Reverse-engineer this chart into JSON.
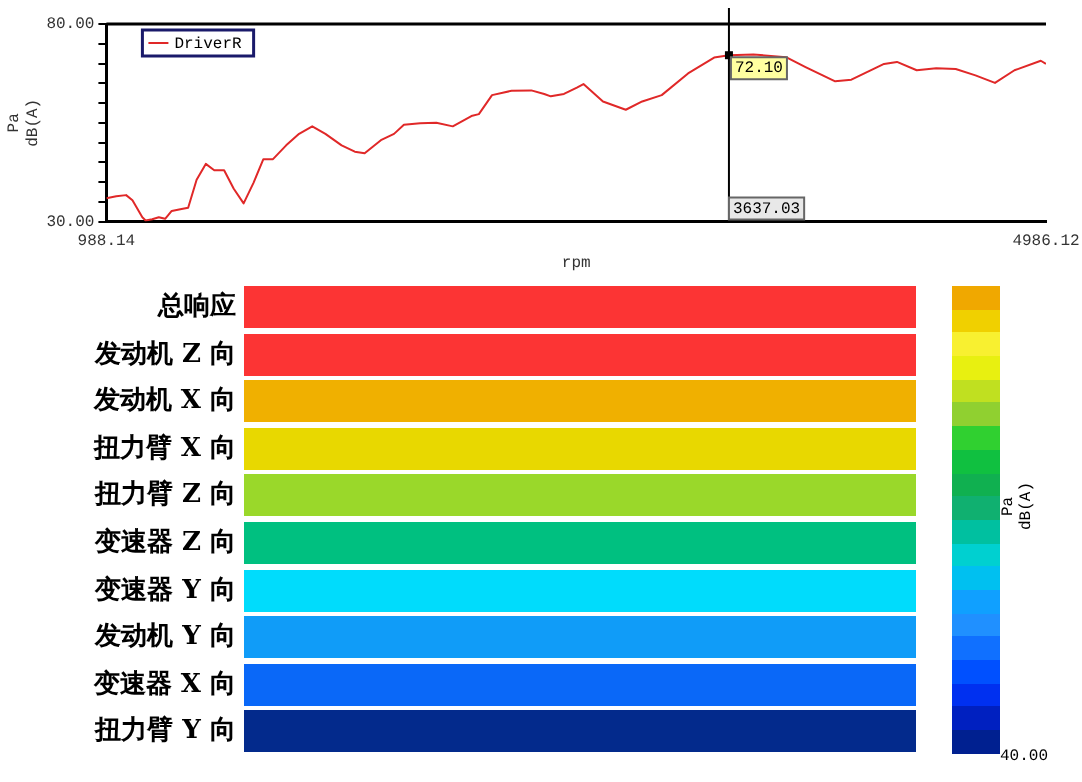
{
  "chart_data": [
    {
      "type": "line",
      "xlabel": "rpm",
      "ylabel": "Pa\ndB(A)",
      "legend": "top left",
      "marker": "none",
      "line_style": "solid",
      "xlim": [
        988.14,
        4986.12
      ],
      "xticks": [
        {
          "value": 988.14,
          "label": "988.14"
        },
        {
          "value": 4986.12,
          "label": "4986.12"
        }
      ],
      "ylim": [
        30,
        80
      ],
      "yticks": [
        {
          "value": 30,
          "label": "30.00"
        },
        {
          "value": 35,
          "label": null
        },
        {
          "value": 40,
          "label": null
        },
        {
          "value": 45,
          "label": null
        },
        {
          "value": 50,
          "label": null
        },
        {
          "value": 55,
          "label": null
        },
        {
          "value": 60,
          "label": null
        },
        {
          "value": 65,
          "label": null
        },
        {
          "value": 70,
          "label": null
        },
        {
          "value": 75,
          "label": null
        },
        {
          "value": 80,
          "label": "80.00"
        }
      ],
      "ref_lines": [
        {
          "axis": "x",
          "value": 3637.03,
          "label": "3637.03",
          "color": "#000000"
        }
      ],
      "annotations": [
        {
          "text": "72.10",
          "x": 3637.03,
          "y": 72.1
        }
      ],
      "series": [
        {
          "name": "DriverR",
          "color": "#e02828",
          "x": [
            988.14,
            1030,
            1072,
            1099,
            1141,
            1155,
            1183,
            1211,
            1238,
            1266,
            1308,
            1336,
            1372,
            1411,
            1447,
            1489,
            1530,
            1572,
            1614,
            1656,
            1697,
            1753,
            1808,
            1864,
            1920,
            1989,
            2045,
            2087,
            2156,
            2212,
            2254,
            2323,
            2392,
            2462,
            2545,
            2573,
            2629,
            2712,
            2796,
            2851,
            2879,
            2935,
            2990,
            3018,
            3101,
            3198,
            3268,
            3351,
            3463,
            3574,
            3637.03,
            3741,
            3880,
            3963,
            4089,
            4158,
            4297,
            4352,
            4436,
            4519,
            4602,
            4686,
            4769,
            4852,
            4964,
            4986
          ],
          "values": [
            35.9,
            36.4,
            36.7,
            35.4,
            31.1,
            30.3,
            30.6,
            31.1,
            30.7,
            32.7,
            33.2,
            33.5,
            40.6,
            44.6,
            43.0,
            43.0,
            38.3,
            34.6,
            39.8,
            45.8,
            45.8,
            49.3,
            52.2,
            54.1,
            52.2,
            49.3,
            47.7,
            47.3,
            50.6,
            52.2,
            54.5,
            54.9,
            55.0,
            54.1,
            56.8,
            57.2,
            62.0,
            63.1,
            63.2,
            62.3,
            61.7,
            62.3,
            63.9,
            64.8,
            60.4,
            58.3,
            60.4,
            62.0,
            67.5,
            71.5,
            72.1,
            72.3,
            71.6,
            69.1,
            65.5,
            65.9,
            69.9,
            70.4,
            68.3,
            68.8,
            68.6,
            67.0,
            65.1,
            68.3,
            70.7,
            69.9
          ]
        }
      ]
    },
    {
      "type": "other",
      "clabel": "Pa\ndB(A)",
      "annotations": [
        "40.00"
      ],
      "categories": [
        "总响应",
        "发动机 Z 向",
        "发动机 X 向",
        "扭力臂 X 向",
        "扭力臂 Z 向",
        "变速器 Z 向",
        "变速器 Y 向",
        "发动机 Y 向",
        "变速器 X 向",
        "扭力臂 Y 向"
      ],
      "colors": [
        "#fc3434",
        "#fc3434",
        "#f0b000",
        "#e8d800",
        "#9ad82a",
        "#00c080",
        "#00dcfc",
        "#109cf8",
        "#0a68f8",
        "#032a8c"
      ]
    }
  ]
}
